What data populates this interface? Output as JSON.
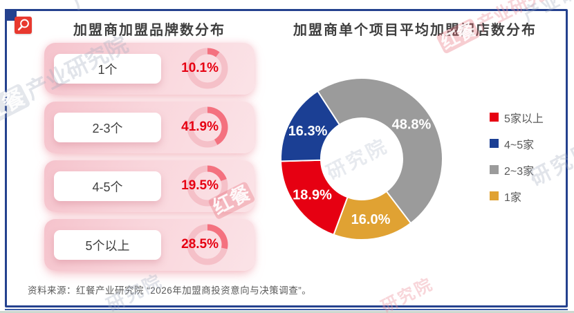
{
  "page": {
    "source_note": "资料来源：红餐产业研究院 “2026年加盟商投资意向与决策调查”。",
    "frame_color": "#24418e",
    "logo_color": "#e8392f",
    "watermark": {
      "boxed": "红餐",
      "text": "产业研究院",
      "suffix": "研究院",
      "full": "红餐产业研究院"
    }
  },
  "chart_data": [
    {
      "id": "franchise-brand-count",
      "type": "bar",
      "variant": "radial-gauge-rows",
      "title": "加盟商加盟品牌数分布",
      "categories": [
        "1个",
        "2-3个",
        "4-5个",
        "5个以上"
      ],
      "values": [
        10.1,
        41.9,
        19.5,
        28.5
      ],
      "unit": "%",
      "value_color": "#e60012",
      "gauge_arc_color": "#f4717f",
      "gauge_track_color": "#f5c0c8",
      "row_bg_color": "#f8d4da",
      "label_box_color": "#ffffff"
    },
    {
      "id": "avg-stores-per-project",
      "type": "pie",
      "variant": "donut",
      "title": "加盟商单个项目平均加盟门店数分布",
      "start_angle_deg": -33,
      "direction": "clockwise",
      "legend_position": "right",
      "label_color": "#ffffff",
      "segments": [
        {
          "label": "2~3家",
          "value": 48.8,
          "color": "#9b9b9b"
        },
        {
          "label": "1家",
          "value": 16.0,
          "color": "#e0a233"
        },
        {
          "label": "5家以上",
          "value": 18.9,
          "color": "#e60012"
        },
        {
          "label": "4~5家",
          "value": 16.3,
          "color": "#1b3f94"
        }
      ],
      "legend": [
        {
          "label": "5家以上",
          "color": "#e60012"
        },
        {
          "label": "4~5家",
          "color": "#1b3f94"
        },
        {
          "label": "2~3家",
          "color": "#9b9b9b"
        },
        {
          "label": "1家",
          "color": "#e0a233"
        }
      ]
    }
  ]
}
